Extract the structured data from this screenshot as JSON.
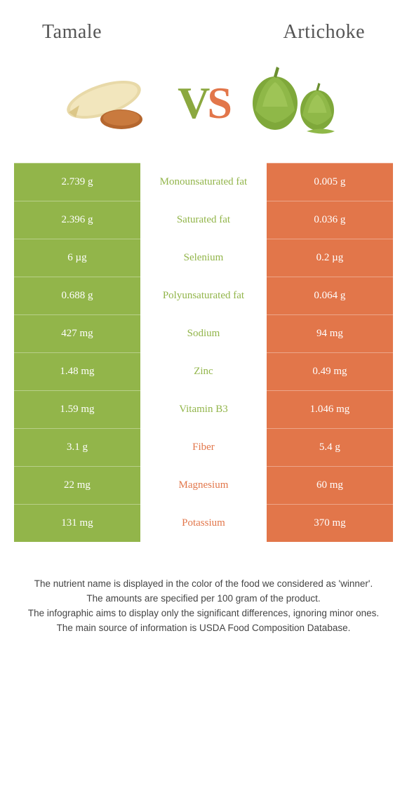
{
  "colors": {
    "left": "#92b54a",
    "right": "#e2764a",
    "mid_left_text": "#92b54a",
    "mid_right_text": "#e2764a"
  },
  "header": {
    "left": "Tamale",
    "right": "Artichoke"
  },
  "vs": {
    "v": "V",
    "s": "S"
  },
  "rows": [
    {
      "left": "2.739 g",
      "mid": "Monounsaturated fat",
      "right": "0.005 g",
      "winner": "left"
    },
    {
      "left": "2.396 g",
      "mid": "Saturated fat",
      "right": "0.036 g",
      "winner": "left"
    },
    {
      "left": "6 µg",
      "mid": "Selenium",
      "right": "0.2 µg",
      "winner": "left"
    },
    {
      "left": "0.688 g",
      "mid": "Polyunsaturated fat",
      "right": "0.064 g",
      "winner": "left"
    },
    {
      "left": "427 mg",
      "mid": "Sodium",
      "right": "94 mg",
      "winner": "left"
    },
    {
      "left": "1.48 mg",
      "mid": "Zinc",
      "right": "0.49 mg",
      "winner": "left"
    },
    {
      "left": "1.59 mg",
      "mid": "Vitamin B3",
      "right": "1.046 mg",
      "winner": "left"
    },
    {
      "left": "3.1 g",
      "mid": "Fiber",
      "right": "5.4 g",
      "winner": "right"
    },
    {
      "left": "22 mg",
      "mid": "Magnesium",
      "right": "60 mg",
      "winner": "right"
    },
    {
      "left": "131 mg",
      "mid": "Potassium",
      "right": "370 mg",
      "winner": "right"
    }
  ],
  "footer": {
    "line1": "The nutrient name is displayed in the color of the food we considered as 'winner'.",
    "line2": "The amounts are specified per 100 gram of the product.",
    "line3": "The infographic aims to display only the significant differences, ignoring minor ones.",
    "line4": "The main source of information is USDA Food Composition Database."
  }
}
